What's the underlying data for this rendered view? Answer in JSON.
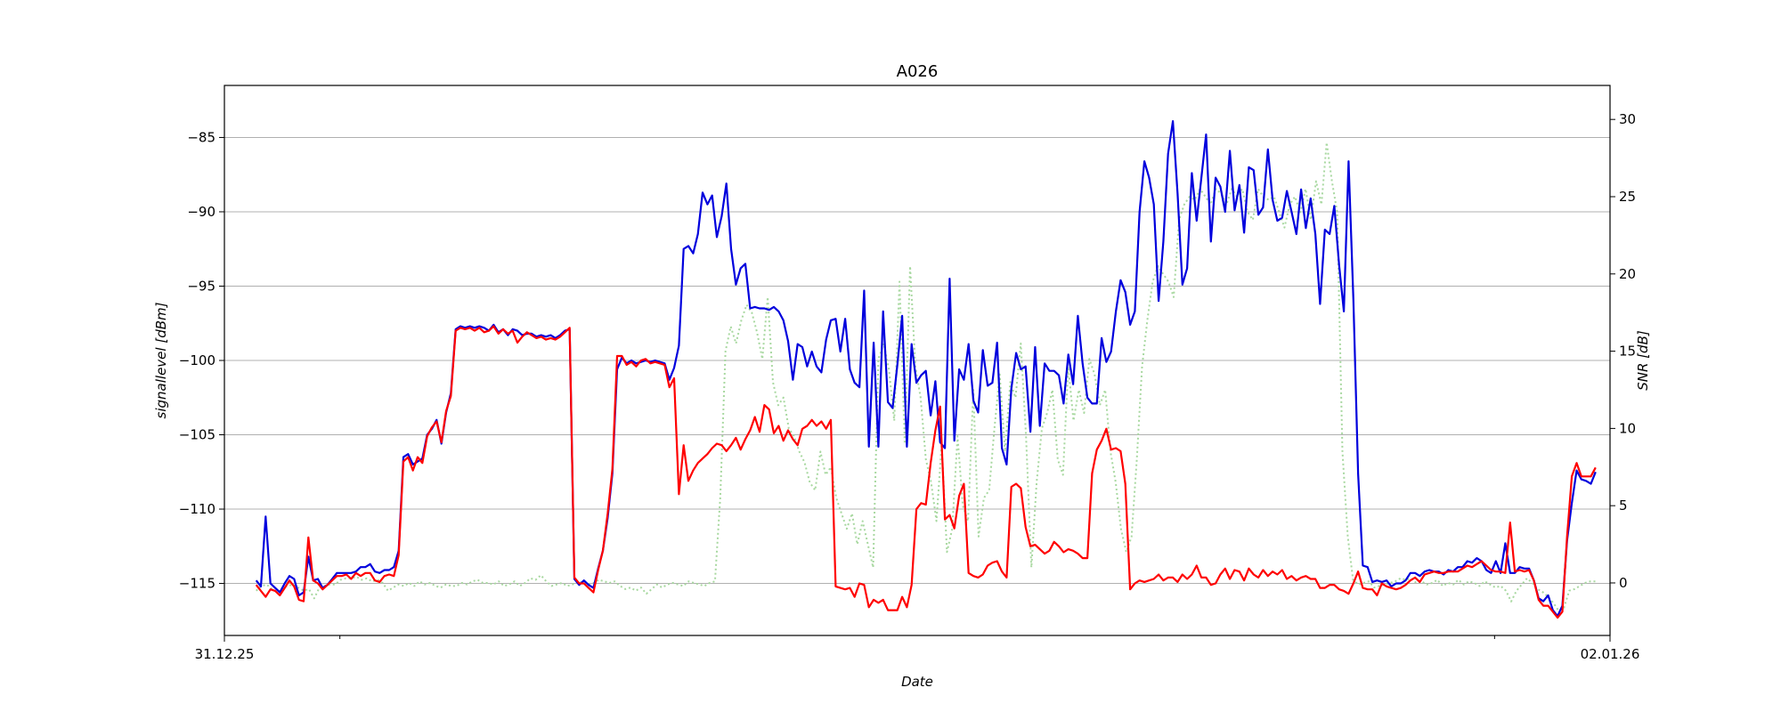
{
  "chart_data": {
    "type": "line",
    "title": "A026",
    "xlabel": "Date",
    "ylabel_left": "signallevel [dBm]",
    "ylabel_right": "SNR [dB]",
    "x_ticks": [
      "31.12.25",
      "02.01.26"
    ],
    "y_left_ticks": [
      -115,
      -110,
      -105,
      -100,
      -95,
      -90,
      -85
    ],
    "y_right_ticks": [
      0,
      5,
      10,
      15,
      20,
      25,
      30
    ],
    "y_left_range": [
      -118.5,
      -81.5
    ],
    "y_right_range": [
      -3.4,
      32.2
    ],
    "grid": "horizontal",
    "x_sample_range_hours": [
      1.1,
      47.5
    ],
    "series": [
      {
        "color": "#0000dd",
        "axis": "left",
        "style": "solid",
        "values": [
          -114.8,
          -115.2,
          -110.5,
          -115.0,
          -115.3,
          -115.6,
          -115.0,
          -114.5,
          -114.7,
          -115.8,
          -115.6,
          -113.2,
          -114.8,
          -114.7,
          -115.3,
          -115.1,
          -114.7,
          -114.3,
          -114.3,
          -114.3,
          -114.3,
          -114.2,
          -113.9,
          -113.9,
          -113.7,
          -114.2,
          -114.3,
          -114.1,
          -114.1,
          -113.9,
          -112.8,
          -106.5,
          -106.3,
          -107.0,
          -106.8,
          -106.6,
          -105.0,
          -104.6,
          -104.0,
          -105.6,
          -103.5,
          -102.2,
          -97.9,
          -97.7,
          -97.8,
          -97.7,
          -97.8,
          -97.7,
          -97.8,
          -98.0,
          -97.6,
          -98.1,
          -97.9,
          -98.3,
          -97.9,
          -98.0,
          -98.3,
          -98.2,
          -98.2,
          -98.4,
          -98.3,
          -98.4,
          -98.3,
          -98.5,
          -98.3,
          -98.0,
          -97.9,
          -114.7,
          -115.1,
          -114.8,
          -115.1,
          -115.3,
          -114.0,
          -112.8,
          -110.6,
          -107.6,
          -100.6,
          -99.8,
          -100.2,
          -100.0,
          -100.2,
          -100.1,
          -100.0,
          -100.1,
          -100.0,
          -100.1,
          -100.2,
          -101.3,
          -100.5,
          -99.0,
          -92.5,
          -92.3,
          -92.8,
          -91.5,
          -88.7,
          -89.5,
          -88.9,
          -91.7,
          -90.3,
          -88.1,
          -92.5,
          -94.9,
          -93.8,
          -93.5,
          -96.5,
          -96.4,
          -96.5,
          -96.5,
          -96.6,
          -96.4,
          -96.7,
          -97.3,
          -98.7,
          -101.3,
          -98.9,
          -99.1,
          -100.4,
          -99.4,
          -100.4,
          -100.8,
          -98.6,
          -97.3,
          -97.2,
          -99.4,
          -97.2,
          -100.6,
          -101.5,
          -101.8,
          -95.3,
          -105.8,
          -98.8,
          -105.8,
          -96.7,
          -102.8,
          -103.2,
          -100.3,
          -97.0,
          -105.8,
          -98.9,
          -101.5,
          -101.0,
          -100.7,
          -103.7,
          -101.4,
          -105.5,
          -105.9,
          -94.5,
          -105.4,
          -100.6,
          -101.3,
          -98.9,
          -102.7,
          -103.5,
          -99.3,
          -101.7,
          -101.5,
          -98.8,
          -105.9,
          -107.0,
          -101.9,
          -99.5,
          -100.6,
          -100.4,
          -104.8,
          -99.1,
          -104.4,
          -100.2,
          -100.7,
          -100.7,
          -101.0,
          -102.9,
          -99.6,
          -101.6,
          -97.0,
          -100.2,
          -102.5,
          -102.9,
          -102.9,
          -98.5,
          -100.1,
          -99.4,
          -96.7,
          -94.6,
          -95.4,
          -97.6,
          -96.7,
          -90.0,
          -86.6,
          -87.7,
          -89.5,
          -96.0,
          -92.0,
          -86.1,
          -83.9,
          -88.8,
          -94.9,
          -93.8,
          -87.4,
          -90.6,
          -87.7,
          -84.8,
          -92.0,
          -87.7,
          -88.3,
          -90.0,
          -85.9,
          -89.9,
          -88.2,
          -91.4,
          -87.0,
          -87.2,
          -90.2,
          -89.7,
          -85.8,
          -89.2,
          -90.6,
          -90.4,
          -88.6,
          -90.0,
          -91.5,
          -88.5,
          -91.1,
          -89.1,
          -91.5,
          -96.2,
          -91.2,
          -91.5,
          -89.6,
          -93.6,
          -96.7,
          -86.6,
          -95.9,
          -107.6,
          -113.8,
          -113.9,
          -114.9,
          -114.8,
          -114.9,
          -114.8,
          -115.2,
          -115.0,
          -115.0,
          -114.8,
          -114.3,
          -114.3,
          -114.5,
          -114.2,
          -114.1,
          -114.2,
          -114.2,
          -114.4,
          -114.1,
          -114.2,
          -113.9,
          -113.9,
          -113.5,
          -113.6,
          -113.3,
          -113.5,
          -114.1,
          -114.3,
          -113.5,
          -114.3,
          -112.3,
          -114.3,
          -114.3,
          -113.9,
          -114.0,
          -114.0,
          -114.8,
          -116.0,
          -116.2,
          -115.8,
          -116.8,
          -117.2,
          -116.5,
          -112.1,
          -109.6,
          -107.4,
          -108.0,
          -108.1,
          -108.3,
          -107.5
        ],
        "name": ""
      },
      {
        "color": "#ff0000",
        "axis": "left",
        "style": "solid",
        "values": [
          -115.1,
          -115.5,
          -115.9,
          -115.4,
          -115.5,
          -115.8,
          -115.3,
          -114.8,
          -115.2,
          -116.1,
          -116.2,
          -111.9,
          -114.8,
          -115.0,
          -115.4,
          -115.1,
          -114.8,
          -114.5,
          -114.5,
          -114.4,
          -114.7,
          -114.3,
          -114.5,
          -114.3,
          -114.3,
          -114.8,
          -114.9,
          -114.5,
          -114.4,
          -114.5,
          -113.1,
          -106.8,
          -106.5,
          -107.4,
          -106.5,
          -106.9,
          -105.1,
          -104.5,
          -104.1,
          -105.5,
          -103.4,
          -102.4,
          -98.0,
          -97.8,
          -97.9,
          -97.8,
          -98.0,
          -97.8,
          -98.1,
          -98.0,
          -97.7,
          -98.2,
          -97.9,
          -98.2,
          -98.0,
          -98.8,
          -98.4,
          -98.1,
          -98.3,
          -98.5,
          -98.4,
          -98.6,
          -98.5,
          -98.6,
          -98.4,
          -98.1,
          -97.8,
          -114.6,
          -115.0,
          -115.0,
          -115.3,
          -115.6,
          -114.1,
          -112.8,
          -110.3,
          -107.3,
          -99.7,
          -99.7,
          -100.3,
          -100.1,
          -100.4,
          -100.0,
          -99.9,
          -100.2,
          -100.1,
          -100.2,
          -100.3,
          -101.8,
          -101.2,
          -109.0,
          -105.7,
          -108.1,
          -107.4,
          -106.9,
          -106.6,
          -106.3,
          -105.9,
          -105.6,
          -105.7,
          -106.1,
          -105.7,
          -105.2,
          -106.0,
          -105.3,
          -104.7,
          -103.8,
          -104.8,
          -103.0,
          -103.3,
          -104.9,
          -104.4,
          -105.4,
          -104.7,
          -105.3,
          -105.7,
          -104.6,
          -104.4,
          -104.0,
          -104.4,
          -104.1,
          -104.6,
          -104.0,
          -115.2,
          -115.3,
          -115.4,
          -115.3,
          -115.9,
          -115.0,
          -115.1,
          -116.6,
          -116.1,
          -116.3,
          -116.1,
          -116.8,
          -116.8,
          -116.8,
          -115.9,
          -116.6,
          -115.1,
          -110.0,
          -109.6,
          -109.7,
          -106.9,
          -104.7,
          -103.1,
          -110.7,
          -110.4,
          -111.3,
          -109.1,
          -108.3,
          -114.3,
          -114.5,
          -114.6,
          -114.4,
          -113.8,
          -113.6,
          -113.5,
          -114.2,
          -114.6,
          -108.5,
          -108.3,
          -108.6,
          -111.2,
          -112.5,
          -112.4,
          -112.7,
          -113.0,
          -112.8,
          -112.2,
          -112.5,
          -112.9,
          -112.7,
          -112.8,
          -113.0,
          -113.3,
          -113.3,
          -107.6,
          -106.0,
          -105.4,
          -104.6,
          -106.0,
          -105.9,
          -106.1,
          -108.3,
          -115.4,
          -115.0,
          -114.8,
          -114.9,
          -114.8,
          -114.7,
          -114.4,
          -114.8,
          -114.6,
          -114.6,
          -114.9,
          -114.4,
          -114.7,
          -114.4,
          -113.8,
          -114.6,
          -114.6,
          -115.1,
          -115.0,
          -114.4,
          -114.0,
          -114.7,
          -114.1,
          -114.2,
          -114.8,
          -114.0,
          -114.4,
          -114.6,
          -114.1,
          -114.5,
          -114.2,
          -114.4,
          -114.1,
          -114.7,
          -114.5,
          -114.8,
          -114.6,
          -114.5,
          -114.7,
          -114.7,
          -115.3,
          -115.3,
          -115.1,
          -115.1,
          -115.4,
          -115.5,
          -115.7,
          -115.0,
          -114.2,
          -115.3,
          -115.4,
          -115.4,
          -115.8,
          -115.0,
          -115.2,
          -115.3,
          -115.4,
          -115.3,
          -115.1,
          -114.8,
          -114.6,
          -114.9,
          -114.4,
          -114.3,
          -114.2,
          -114.3,
          -114.3,
          -114.2,
          -114.2,
          -114.2,
          -114.0,
          -113.8,
          -113.9,
          -113.7,
          -113.5,
          -113.8,
          -114.1,
          -114.2,
          -114.2,
          -114.3,
          -110.9,
          -114.2,
          -114.1,
          -114.2,
          -114.1,
          -114.8,
          -116.1,
          -116.5,
          -116.5,
          -116.9,
          -117.3,
          -116.9,
          -111.8,
          -107.8,
          -106.9,
          -107.8,
          -107.8,
          -107.8,
          -107.2
        ],
        "name": ""
      },
      {
        "color": "#a8d8a0",
        "axis": "right",
        "style": "dotted",
        "values": [
          -0.5,
          -0.2,
          -0.1,
          -0.4,
          -0.6,
          -0.3,
          -0.2,
          -0.1,
          -0.3,
          -0.5,
          -0.4,
          -1.0,
          -0.3,
          -0.2,
          -0.1,
          -0.1,
          0.2,
          0.3,
          0.3,
          0.4,
          0.2,
          0.3,
          0.1,
          0.2,
          0.0,
          -0.5,
          -0.3,
          -0.1,
          -0.2,
          0.0,
          -0.2,
          0.1,
          -0.1,
          0.0,
          -0.2,
          -0.3,
          -0.1,
          -0.2,
          -0.2,
          0.0,
          -0.1,
          0.1,
          0.2,
          0.0,
          0.0,
          -0.1,
          0.1,
          -0.2,
          -0.1,
          0.1,
          -0.2,
          0.0,
          0.3,
          0.2,
          0.5,
          0.1,
          -0.2,
          -0.1,
          0.0,
          -0.2,
          -0.1,
          0.1,
          0.0,
          -0.1,
          0.0,
          0.2,
          0.1,
          0.0,
          0.1,
          -0.2,
          -0.4,
          -0.3,
          -0.5,
          -0.3,
          -0.7,
          -0.4,
          -0.1,
          -0.3,
          -0.1,
          0.0,
          -0.1,
          -0.2,
          0.1,
          0.0,
          -0.1,
          -0.2,
          0.0,
          0.1,
          5.5,
          15.0,
          16.6,
          15.5,
          17.0,
          18.0,
          17.5,
          16.2,
          14.5,
          18.5,
          13.0,
          11.5,
          12.0,
          10.0,
          9.5,
          8.5,
          7.8,
          6.5,
          6.0,
          8.5,
          7.0,
          7.5,
          5.5,
          4.5,
          3.5,
          4.5,
          2.5,
          4.0,
          2.5,
          1.0,
          14.5,
          15.5,
          13.8,
          10.5,
          19.5,
          9.0,
          20.5,
          14.0,
          12.0,
          8.0,
          6.5,
          4.0,
          9.0,
          2.0,
          3.5,
          9.5,
          5.0,
          4.0,
          12.5,
          3.0,
          5.5,
          6.0,
          10.0,
          13.5,
          8.5,
          13.0,
          12.0,
          15.5,
          9.5,
          1.0,
          6.5,
          10.0,
          11.0,
          12.5,
          8.0,
          7.0,
          14.0,
          10.5,
          12.5,
          11.0,
          14.5,
          13.5,
          11.5,
          12.5,
          8.5,
          6.5,
          3.5,
          2.0,
          3.0,
          8.0,
          14.0,
          17.0,
          19.5,
          20.5,
          20.0,
          19.5,
          18.5,
          23.5,
          24.5,
          25.0,
          24.8,
          25.5,
          25.0,
          24.5,
          25.5,
          25.2,
          24.5,
          25.5,
          25.0,
          25.5,
          24.0,
          23.5,
          25.5,
          25.0,
          24.8,
          25.0,
          24.0,
          23.0,
          24.5,
          25.0,
          24.0,
          25.5,
          23.5,
          26.0,
          24.5,
          28.5,
          26.0,
          24.0,
          8.5,
          3.0,
          0.2,
          -0.1,
          0.0,
          0.1,
          -0.3,
          -0.2,
          -0.1,
          0.0,
          0.1,
          0.3,
          0.2,
          0.3,
          0.0,
          0.1,
          -0.1,
          0.0,
          0.2,
          -0.2,
          0.0,
          -0.1,
          0.2,
          -0.1,
          0.1,
          0.0,
          -0.2,
          0.1,
          -0.1,
          -0.3,
          -0.2,
          -0.5,
          -1.2,
          -0.5,
          -0.1,
          0.3,
          0.0,
          -0.4,
          -0.6,
          -0.9,
          -1.3,
          -1.8,
          -1.6,
          -0.5,
          -0.4,
          -0.2,
          0.0,
          0.1,
          0.1
        ],
        "name": ""
      }
    ]
  }
}
